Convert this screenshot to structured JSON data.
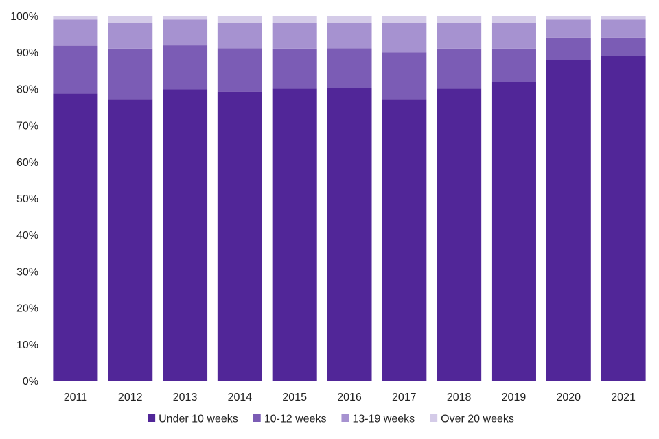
{
  "chart_data": {
    "type": "bar",
    "stacked": true,
    "normalized": true,
    "title": "",
    "xlabel": "",
    "ylabel": "",
    "categories": [
      "2011",
      "2012",
      "2013",
      "2014",
      "2015",
      "2016",
      "2017",
      "2018",
      "2019",
      "2020",
      "2021"
    ],
    "ylim": [
      0,
      100
    ],
    "yticks": [
      0,
      10,
      20,
      30,
      40,
      50,
      60,
      70,
      80,
      90,
      100
    ],
    "ytick_labels": [
      "0%",
      "10%",
      "20%",
      "30%",
      "40%",
      "50%",
      "60%",
      "70%",
      "80%",
      "90%",
      "100%"
    ],
    "grid": false,
    "legend_position": "bottom",
    "series": [
      {
        "name": "Under 10 weeks",
        "color": "#512698",
        "values": [
          78.7,
          77,
          79.8,
          79.2,
          80,
          80.2,
          77,
          80,
          81.9,
          87.9,
          89
        ]
      },
      {
        "name": "10-12 weeks",
        "color": "#7b5cb5",
        "values": [
          13.1,
          14,
          12.1,
          11.9,
          11,
          10.9,
          13,
          11,
          9.1,
          6.1,
          5
        ]
      },
      {
        "name": "13-19 weeks",
        "color": "#a692d0",
        "values": [
          7.2,
          7,
          7.1,
          6.9,
          7,
          6.9,
          8,
          7,
          7,
          5,
          5
        ]
      },
      {
        "name": "Over 20 weeks",
        "color": "#d4cbe8",
        "values": [
          1,
          2,
          1,
          2,
          2,
          2,
          2,
          2,
          2,
          1,
          1
        ]
      }
    ]
  }
}
